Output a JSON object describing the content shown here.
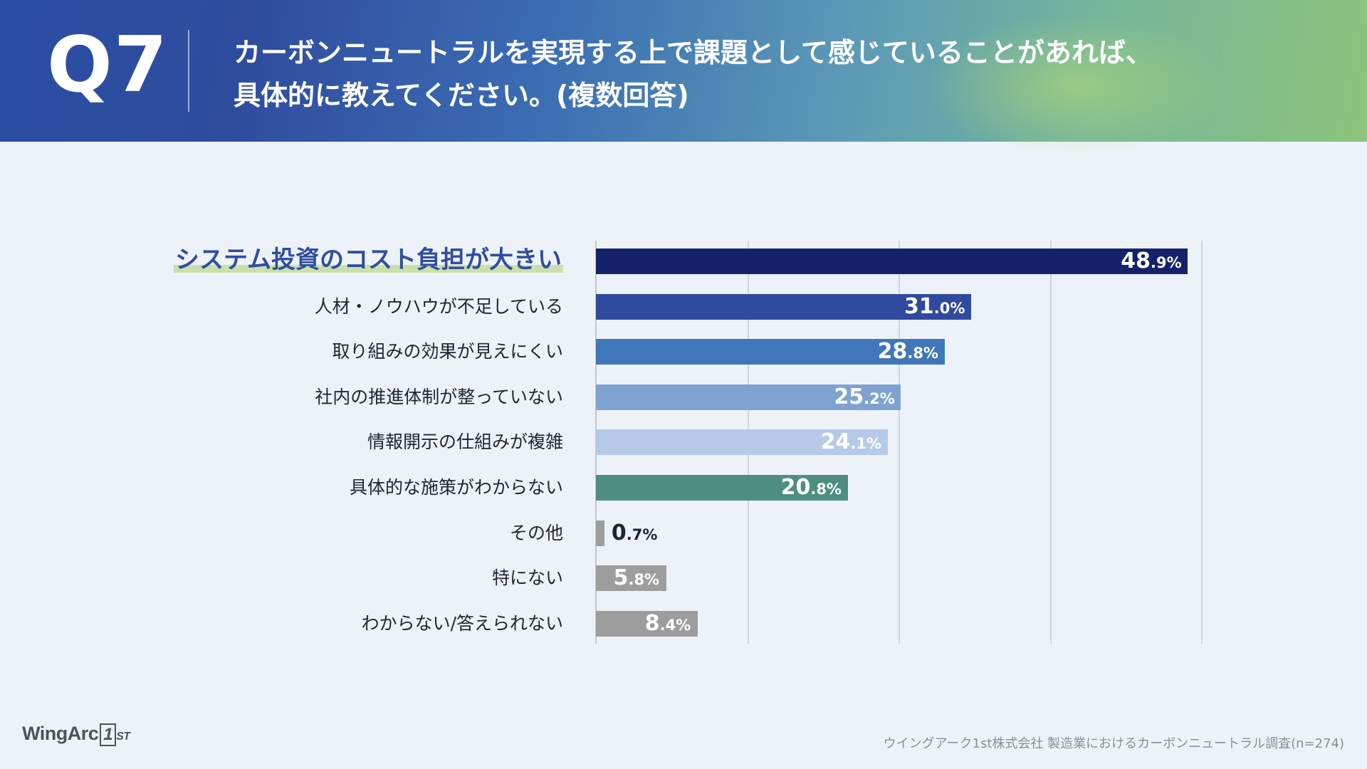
{
  "header": {
    "qnum": "Q7",
    "title_line1": "カーボンニュートラルを実現する上で課題として感じていることがあれば、",
    "title_line2": "具体的に教えてください。(複数回答)"
  },
  "chart_data": {
    "type": "bar",
    "orientation": "horizontal",
    "xlim": [
      0,
      50
    ],
    "grid": true,
    "categories": [
      "システム投資のコスト負担が大きい",
      "人材・ノウハウが不足している",
      "取り組みの効果が見えにくい",
      "社内の推進体制が整っていない",
      "情報開示の仕組みが複雑",
      "具体的な施策がわからない",
      "その他",
      "特にない",
      "わからない/答えられない"
    ],
    "values": [
      48.9,
      31.0,
      28.8,
      25.2,
      24.1,
      20.8,
      0.7,
      5.8,
      8.4
    ],
    "labels": [
      {
        "int": "48",
        "dec": ".9%"
      },
      {
        "int": "31",
        "dec": ".0%"
      },
      {
        "int": "28",
        "dec": ".8%"
      },
      {
        "int": "25",
        "dec": ".2%"
      },
      {
        "int": "24",
        "dec": ".1%"
      },
      {
        "int": "20",
        "dec": ".8%"
      },
      {
        "int": "0",
        "dec": ".7%"
      },
      {
        "int": "5",
        "dec": ".8%"
      },
      {
        "int": "8",
        "dec": ".4%"
      }
    ],
    "colors": [
      "#13226b",
      "#2f4a9e",
      "#3f77b8",
      "#7ea3d0",
      "#b5cae6",
      "#4d8e7e",
      "#9d9d9d",
      "#9d9d9d",
      "#9d9d9d"
    ],
    "highlight_index": 0,
    "title": "",
    "xlabel": "",
    "ylabel": ""
  },
  "footer": {
    "logo_main": "WingArc",
    "logo_one": "1",
    "logo_st": "ST",
    "source": "ウイングアーク1st株式会社 製造業におけるカーボンニュートラル調査(n=274)"
  }
}
